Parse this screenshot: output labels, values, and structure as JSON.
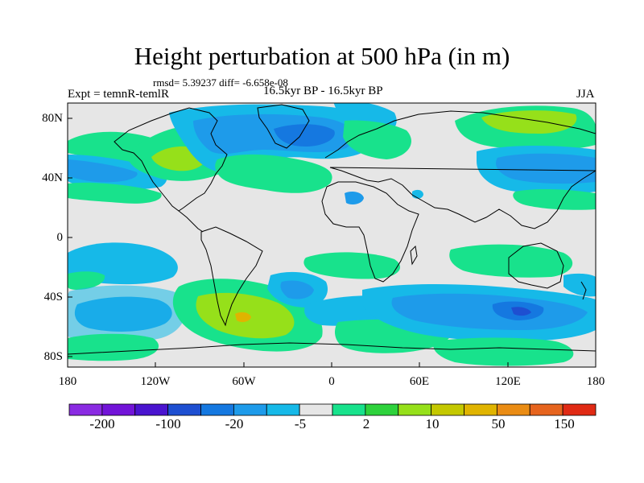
{
  "title": "Height perturbation at 500 hPa (in m)",
  "stats": "rmsd= 5.39237   diff= -6.658e-08",
  "left_label": "Expt = temnR-temlR",
  "center_label": "16.5kyr BP - 16.5kyr BP",
  "right_label": "JJA",
  "lat_ticks": [
    "80N",
    "40N",
    "0",
    "40S",
    "80S"
  ],
  "lon_ticks": [
    "180",
    "120W",
    "60W",
    "0",
    "60E",
    "120E",
    "180"
  ],
  "colorbar": {
    "colors": [
      "#8a2be2",
      "#7214d8",
      "#4a14cf",
      "#1e4fd1",
      "#1578e0",
      "#1e9bea",
      "#16b9e8",
      "#e6e6e6",
      "#18e28c",
      "#2ed23c",
      "#96e01a",
      "#c4c800",
      "#e0b400",
      "#ea8c14",
      "#e6641e",
      "#e02a14"
    ],
    "labels": [
      "-200",
      "-100",
      "-20",
      "-5",
      "2",
      "10",
      "50",
      "150"
    ]
  }
}
